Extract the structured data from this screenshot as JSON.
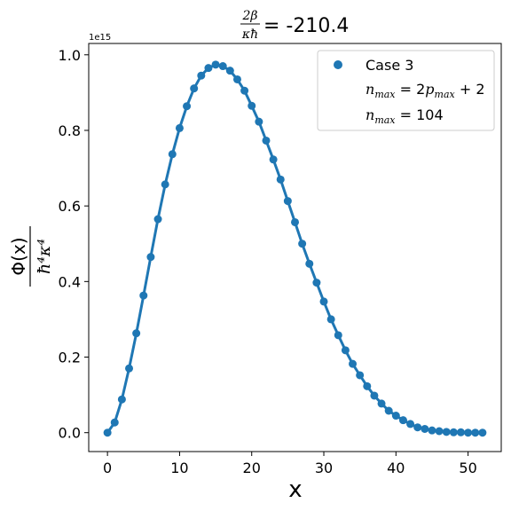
{
  "chart_data": {
    "type": "line",
    "title": {
      "fraction_numerator": "2β",
      "fraction_denominator": "κħ",
      "value_text": "= -210.4"
    },
    "xlabel": "x",
    "ylabel": {
      "numerator": "Φ(x)",
      "denominator": "ħ⁴κ⁴"
    },
    "y_offset_text": "1e15",
    "xlim": [
      -2.6,
      54.6
    ],
    "ylim": [
      -0.05,
      1.03
    ],
    "x_ticks": [
      0,
      10,
      20,
      30,
      40,
      50
    ],
    "x_tick_labels": [
      "0",
      "10",
      "20",
      "30",
      "40",
      "50"
    ],
    "y_ticks": [
      0.0,
      0.2,
      0.4,
      0.6,
      0.8,
      1.0
    ],
    "y_tick_labels": [
      "0.0",
      "0.2",
      "0.4",
      "0.6",
      "0.8",
      "1.0"
    ],
    "grid": false,
    "legend_position": "top-right",
    "legend": [
      {
        "label": "Case 3",
        "marker": "circle"
      },
      {
        "label": "n_max = 2p_max + 2",
        "marker": "none"
      },
      {
        "label": "n_max = 104",
        "marker": "none"
      }
    ],
    "series": [
      {
        "name": "Case 3",
        "color": "#1f77b4",
        "x": [
          0,
          1,
          2,
          3,
          4,
          5,
          6,
          7,
          8,
          9,
          10,
          11,
          12,
          13,
          14,
          15,
          16,
          17,
          18,
          19,
          20,
          21,
          22,
          23,
          24,
          25,
          26,
          27,
          28,
          29,
          30,
          31,
          32,
          33,
          34,
          35,
          36,
          37,
          38,
          39,
          40,
          41,
          42,
          43,
          44,
          45,
          46,
          47,
          48,
          49,
          50,
          51,
          52
        ],
        "y": [
          0.0,
          0.027,
          0.088,
          0.17,
          0.263,
          0.363,
          0.465,
          0.565,
          0.657,
          0.737,
          0.806,
          0.864,
          0.911,
          0.945,
          0.965,
          0.974,
          0.97,
          0.958,
          0.935,
          0.905,
          0.865,
          0.823,
          0.773,
          0.723,
          0.67,
          0.613,
          0.557,
          0.5,
          0.447,
          0.397,
          0.347,
          0.3,
          0.258,
          0.218,
          0.182,
          0.152,
          0.123,
          0.098,
          0.077,
          0.058,
          0.045,
          0.033,
          0.023,
          0.014,
          0.01,
          0.006,
          0.004,
          0.002,
          0.001,
          0.001,
          0.0,
          0.0,
          0.0
        ]
      }
    ]
  }
}
